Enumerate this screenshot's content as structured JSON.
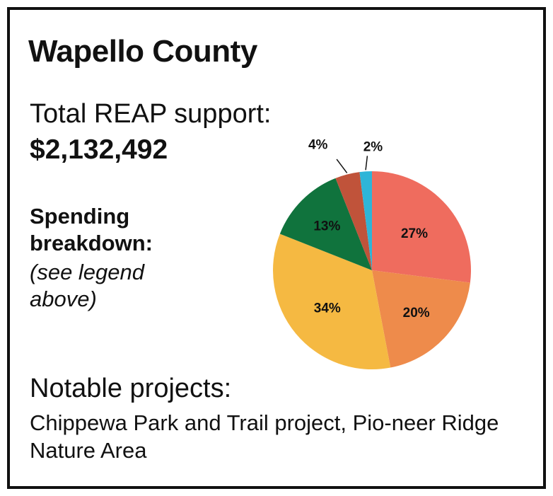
{
  "title": "Wapello County",
  "support": {
    "label": "Total REAP support:",
    "value": "$2,132,492"
  },
  "spending": {
    "title": "Spending breakdown:",
    "note": "(see legend above)"
  },
  "notable": {
    "title": "Notable projects:",
    "text": "Chippewa Park and Trail project, Pio-neer Ridge Nature Area"
  },
  "chart_data": {
    "type": "pie",
    "values": [
      27,
      20,
      34,
      13,
      4,
      2
    ],
    "labels": [
      "27%",
      "20%",
      "34%",
      "13%",
      "4%",
      "2%"
    ],
    "colors": [
      "#EF6C5E",
      "#EE8B4B",
      "#F5B942",
      "#10733D",
      "#C0533A",
      "#2EB5D8"
    ]
  }
}
